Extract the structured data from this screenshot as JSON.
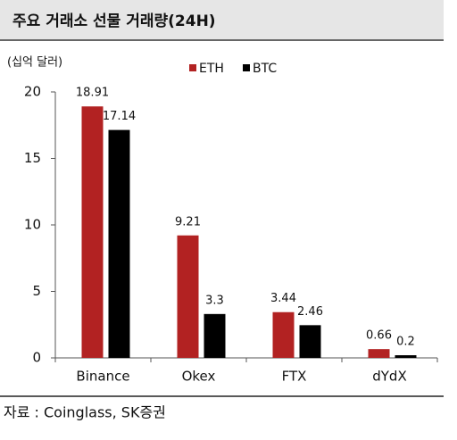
{
  "chart_data": {
    "type": "bar",
    "title": "주요 거래소 선물 거래량(24H)",
    "unit": "(십억 달러)",
    "source": "자료 : Coinglass, SK증권",
    "categories": [
      "Binance",
      "Okex",
      "FTX",
      "dYdX"
    ],
    "series": [
      {
        "name": "ETH",
        "color": "#b22222",
        "values": [
          18.91,
          9.21,
          3.44,
          0.66
        ]
      },
      {
        "name": "BTC",
        "color": "#000000",
        "values": [
          17.14,
          3.3,
          2.46,
          0.2
        ]
      }
    ],
    "ylim": [
      0,
      20
    ],
    "yticks": [
      0,
      5,
      10,
      15,
      20
    ],
    "grid": false,
    "legend": "top"
  }
}
